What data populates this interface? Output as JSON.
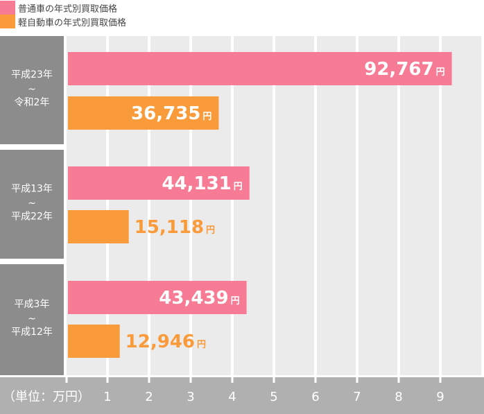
{
  "legend": [
    {
      "label": "普通車の年式別買取価格",
      "color": "#f77b94"
    },
    {
      "label": "軽自動車の年式別買取価格",
      "color": "#f99b3b"
    }
  ],
  "chart_data": {
    "type": "bar",
    "orientation": "horizontal",
    "categories": [
      {
        "line1": "平成23年",
        "sep": "~",
        "line2": "令和2年"
      },
      {
        "line1": "平成13年",
        "sep": "~",
        "line2": "平成22年"
      },
      {
        "line1": "平成3年",
        "sep": "~",
        "line2": "平成12年"
      }
    ],
    "series": [
      {
        "name": "普通車の年式別買取価格",
        "color": "#f77b94",
        "values": [
          92767,
          44131,
          43439
        ],
        "labels": [
          "92,767",
          "44,131",
          "43,439"
        ]
      },
      {
        "name": "軽自動車の年式別買取価格",
        "color": "#f99b3b",
        "values": [
          36735,
          15118,
          12946
        ],
        "labels": [
          "36,735",
          "15,118",
          "12,946"
        ]
      }
    ],
    "value_unit": "円",
    "axis_unit_label": "（単位：万円）",
    "xticks": [
      1,
      2,
      3,
      4,
      5,
      6,
      7,
      8,
      9
    ],
    "xlim": [
      0,
      100000
    ],
    "grid": true,
    "legend_position": "top-left"
  }
}
